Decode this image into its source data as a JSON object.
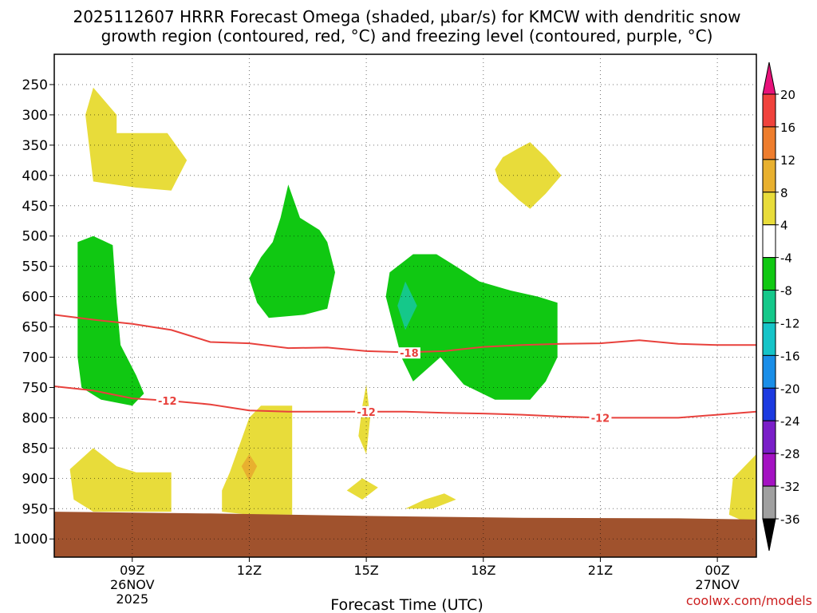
{
  "chart_data": {
    "type": "heatmap",
    "title_line1": "2025112607 HRRR Forecast Omega (shaded, μbar/s) for KMCW with dendritic snow",
    "title_line2": "growth region (contoured, red, °C) and freezing level (contoured, purple, °C)",
    "xlabel": "Forecast Time (UTC)",
    "ylabel": "",
    "credit": "coolwx.com/models",
    "x_ticks": [
      {
        "hour": 9,
        "label": "09Z",
        "sub1": "26NOV",
        "sub2": "2025"
      },
      {
        "hour": 12,
        "label": "12Z",
        "sub1": "",
        "sub2": ""
      },
      {
        "hour": 15,
        "label": "15Z",
        "sub1": "",
        "sub2": ""
      },
      {
        "hour": 18,
        "label": "18Z",
        "sub1": "",
        "sub2": ""
      },
      {
        "hour": 21,
        "label": "21Z",
        "sub1": "",
        "sub2": ""
      },
      {
        "hour": 24,
        "label": "00Z",
        "sub1": "27NOV",
        "sub2": ""
      }
    ],
    "x_range_hours": [
      7,
      25
    ],
    "y_ticks": [
      250,
      300,
      350,
      400,
      450,
      500,
      550,
      600,
      650,
      700,
      750,
      800,
      850,
      900,
      950,
      1000
    ],
    "y_range_hpa": [
      200,
      1030
    ],
    "colorbar": {
      "labels": [
        "20",
        "16",
        "12",
        "8",
        "4",
        "-4",
        "-8",
        "-12",
        "-16",
        "-20",
        "-24",
        "-28",
        "-32",
        "-36"
      ],
      "colors": [
        "#e8127a",
        "#f0423c",
        "#ee7d2d",
        "#e8b02f",
        "#e8dc3a",
        "#ffffff",
        "#10c812",
        "#15c88a",
        "#16c4c8",
        "#1a8ee8",
        "#1c3ae0",
        "#7a1ec8",
        "#a412c2",
        "#a0a0a0",
        "#000000"
      ]
    },
    "omega_regions": [
      {
        "name": "weak-rise-upper-left",
        "value": 4,
        "color": "#e8dc3a",
        "outline": [
          [
            8,
            255
          ],
          [
            8.6,
            300
          ],
          [
            8.6,
            330
          ],
          [
            9.9,
            330
          ],
          [
            10.4,
            375
          ],
          [
            10,
            425
          ],
          [
            9.1,
            420
          ],
          [
            8,
            410
          ],
          [
            7.8,
            300
          ]
        ]
      },
      {
        "name": "weak-rise-19z",
        "value": 4,
        "color": "#e8dc3a",
        "outline": [
          [
            19.2,
            345
          ],
          [
            19.6,
            370
          ],
          [
            20,
            400
          ],
          [
            19.6,
            430
          ],
          [
            19.2,
            455
          ],
          [
            18.9,
            440
          ],
          [
            18.4,
            410
          ],
          [
            18.3,
            390
          ],
          [
            18.5,
            370
          ],
          [
            18.9,
            355
          ]
        ]
      },
      {
        "name": "weak-rise-low-left",
        "value": 4,
        "color": "#e8dc3a",
        "outline": [
          [
            7.4,
            885
          ],
          [
            8,
            850
          ],
          [
            8.6,
            880
          ],
          [
            9.1,
            890
          ],
          [
            10,
            890
          ],
          [
            10,
            955
          ],
          [
            9,
            955
          ],
          [
            8,
            955
          ],
          [
            7.5,
            935
          ]
        ]
      },
      {
        "name": "weak-rise-12z",
        "value": 4,
        "color": "#e8dc3a",
        "outline": [
          [
            11.5,
            890
          ],
          [
            12,
            800
          ],
          [
            12.3,
            780
          ],
          [
            13.1,
            780
          ],
          [
            13.1,
            960
          ],
          [
            12,
            960
          ],
          [
            11.3,
            955
          ],
          [
            11.3,
            920
          ]
        ]
      },
      {
        "name": "weak-rise-15z",
        "value": 4,
        "color": "#e8dc3a",
        "outline": [
          [
            15,
            745
          ],
          [
            15.1,
            800
          ],
          [
            15,
            860
          ],
          [
            14.8,
            830
          ],
          [
            14.9,
            780
          ]
        ]
      },
      {
        "name": "weak-rise-15z-low",
        "value": 4,
        "color": "#e8dc3a",
        "outline": [
          [
            14.5,
            920
          ],
          [
            14.9,
            900
          ],
          [
            15.3,
            915
          ],
          [
            14.9,
            935
          ]
        ]
      },
      {
        "name": "weak-rise-16z-low",
        "value": 4,
        "color": "#e8dc3a",
        "outline": [
          [
            16,
            950
          ],
          [
            16.5,
            935
          ],
          [
            17,
            925
          ],
          [
            17.3,
            935
          ],
          [
            16.7,
            950
          ]
        ]
      },
      {
        "name": "weak-rise-right-edge",
        "value": 4,
        "color": "#e8dc3a",
        "outline": [
          [
            25,
            860
          ],
          [
            25,
            980
          ],
          [
            24.3,
            960
          ],
          [
            24.4,
            900
          ]
        ]
      },
      {
        "name": "moderate-rise-12z-core",
        "value": 8,
        "color": "#e8b02f",
        "outline": [
          [
            12,
            860
          ],
          [
            12.2,
            880
          ],
          [
            12,
            905
          ],
          [
            11.8,
            880
          ]
        ]
      },
      {
        "name": "sink-left-column",
        "value": -4,
        "color": "#10c812",
        "outline": [
          [
            7.6,
            510
          ],
          [
            8,
            500
          ],
          [
            8.5,
            515
          ],
          [
            8.6,
            610
          ],
          [
            8.7,
            680
          ],
          [
            9.1,
            730
          ],
          [
            9.3,
            760
          ],
          [
            9,
            780
          ],
          [
            8.2,
            770
          ],
          [
            7.7,
            750
          ],
          [
            7.6,
            700
          ],
          [
            7.6,
            600
          ]
        ]
      },
      {
        "name": "sink-13z",
        "value": -4,
        "color": "#10c812",
        "outline": [
          [
            13,
            415
          ],
          [
            13.3,
            470
          ],
          [
            13.8,
            490
          ],
          [
            14,
            510
          ],
          [
            14.2,
            560
          ],
          [
            14,
            620
          ],
          [
            13.4,
            630
          ],
          [
            12.5,
            635
          ],
          [
            12.2,
            610
          ],
          [
            12,
            570
          ],
          [
            12.3,
            535
          ],
          [
            12.6,
            510
          ],
          [
            12.8,
            470
          ]
        ]
      },
      {
        "name": "sink-17z",
        "value": -4,
        "color": "#10c812",
        "outline": [
          [
            15.6,
            560
          ],
          [
            16.2,
            530
          ],
          [
            16.8,
            530
          ],
          [
            17.3,
            550
          ],
          [
            17.9,
            575
          ],
          [
            18.7,
            590
          ],
          [
            19.4,
            600
          ],
          [
            19.9,
            610
          ],
          [
            19.9,
            700
          ],
          [
            19.6,
            740
          ],
          [
            19.2,
            770
          ],
          [
            18.3,
            770
          ],
          [
            17.5,
            745
          ],
          [
            16.9,
            700
          ],
          [
            16.2,
            740
          ],
          [
            15.9,
            700
          ],
          [
            15.7,
            650
          ],
          [
            15.5,
            600
          ]
        ]
      },
      {
        "name": "sink-16z-core",
        "value": -8,
        "color": "#15c88a",
        "outline": [
          [
            16,
            575
          ],
          [
            16.3,
            615
          ],
          [
            16,
            655
          ],
          [
            15.8,
            615
          ]
        ]
      }
    ],
    "terrain_top_hpa": [
      [
        7,
        955
      ],
      [
        11,
        958
      ],
      [
        15,
        962
      ],
      [
        19,
        965
      ],
      [
        23,
        966
      ],
      [
        25,
        968
      ]
    ],
    "terrain_color": "#a0522d",
    "isotherms": [
      {
        "label": "-18",
        "color": "#e8413c",
        "points": [
          [
            7,
            630
          ],
          [
            8,
            638
          ],
          [
            9,
            645
          ],
          [
            10,
            655
          ],
          [
            11,
            675
          ],
          [
            12,
            677
          ],
          [
            13,
            685
          ],
          [
            14,
            684
          ],
          [
            15,
            690
          ],
          [
            16,
            692
          ],
          [
            17,
            690
          ],
          [
            18,
            683
          ],
          [
            19,
            680
          ],
          [
            20,
            678
          ],
          [
            21,
            677
          ],
          [
            22,
            672
          ],
          [
            23,
            678
          ],
          [
            24,
            680
          ],
          [
            25,
            680
          ]
        ],
        "label_at": [
          16.1,
          693
        ]
      },
      {
        "label": "-12",
        "color": "#e8413c",
        "points": [
          [
            7,
            748
          ],
          [
            8,
            755
          ],
          [
            9,
            768
          ],
          [
            10,
            772
          ],
          [
            11,
            778
          ],
          [
            12,
            788
          ],
          [
            13,
            790
          ],
          [
            14,
            790
          ],
          [
            15,
            790
          ],
          [
            16,
            790
          ],
          [
            17,
            792
          ],
          [
            18,
            793
          ],
          [
            19,
            795
          ],
          [
            20,
            798
          ],
          [
            21,
            800
          ],
          [
            22,
            800
          ],
          [
            23,
            800
          ],
          [
            24,
            795
          ],
          [
            25,
            790
          ]
        ],
        "label_ats": [
          [
            9.9,
            772
          ],
          [
            15,
            790
          ],
          [
            21,
            800
          ]
        ]
      }
    ]
  }
}
